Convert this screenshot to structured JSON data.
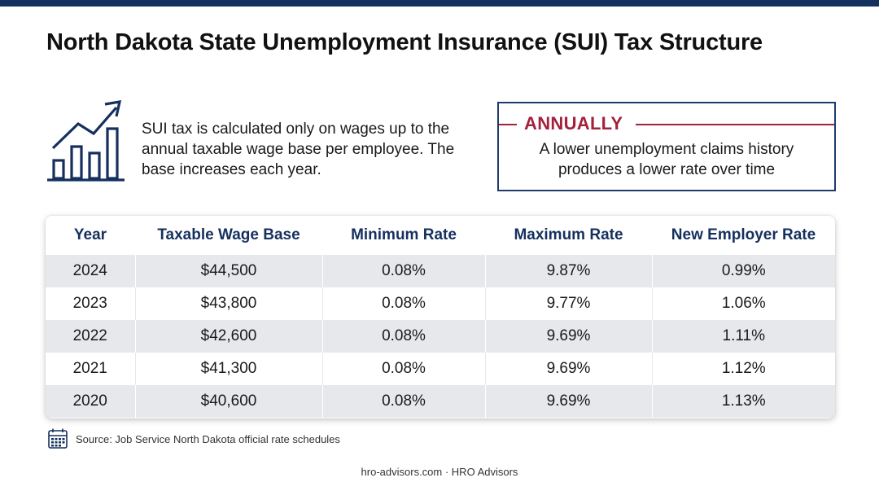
{
  "title": "North Dakota State Unemployment Insurance (SUI) Tax Structure",
  "intro": "SUI tax is calculated only on wages up to the annual taxable wage base per employee. The base increases each year.",
  "icons": {
    "chart": "bar-chart-trend-icon",
    "calendar": "calendar-icon"
  },
  "callout": {
    "heading": "ANNUALLY",
    "text_line1": "A lower unemployment claims history",
    "text_line2": "produces a lower rate over time"
  },
  "table": {
    "headers": [
      "Year",
      "Taxable Wage Base",
      "Minimum Rate",
      "Maximum Rate",
      "New Employer Rate"
    ],
    "rows": [
      [
        "2024",
        "$44,500",
        "0.08%",
        "9.87%",
        "0.99%"
      ],
      [
        "2023",
        "$43,800",
        "0.08%",
        "9.77%",
        "1.06%"
      ],
      [
        "2022",
        "$42,600",
        "0.08%",
        "9.69%",
        "1.11%"
      ],
      [
        "2021",
        "$41,300",
        "0.08%",
        "9.69%",
        "1.12%"
      ],
      [
        "2020",
        "$40,600",
        "0.08%",
        "9.69%",
        "1.13%"
      ]
    ]
  },
  "source": "Source: Job Service North Dakota official rate schedules",
  "footer": "hro-advisors.com · HRO Advisors",
  "colors": {
    "navy": "#16305e",
    "accent_red": "#a3213b",
    "row_shade": "#e6e8ec"
  }
}
